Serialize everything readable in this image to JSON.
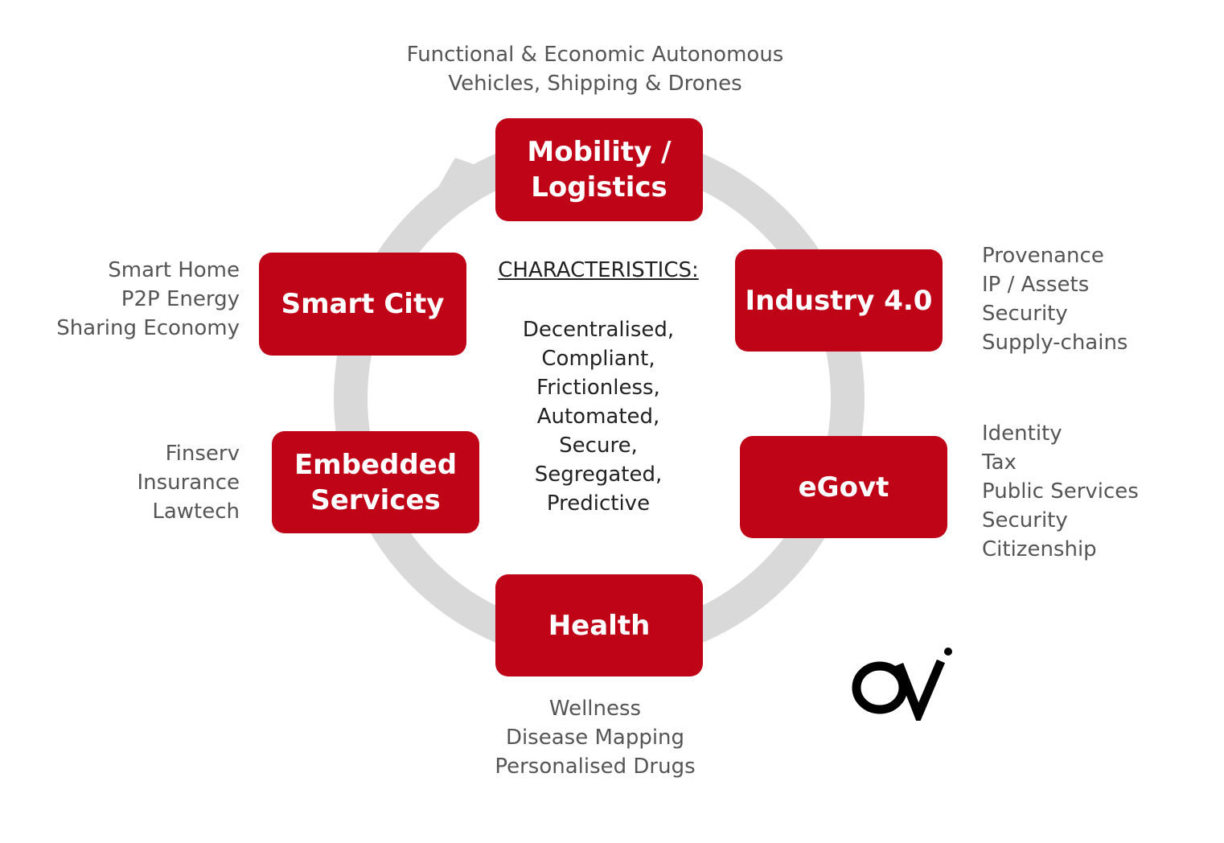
{
  "nodes": {
    "mobility": {
      "line1": "Mobility /",
      "line2": "Logistics"
    },
    "industry": {
      "label": "Industry 4.0"
    },
    "egovt": {
      "label": "eGovt"
    },
    "health": {
      "label": "Health"
    },
    "embedded": {
      "line1": "Embedded",
      "line2": "Services"
    },
    "smartcity": {
      "label": "Smart City"
    }
  },
  "descriptions": {
    "mobility": [
      "Functional & Economic Autonomous",
      "Vehicles, Shipping & Drones"
    ],
    "industry": [
      "Provenance",
      "IP / Assets",
      "Security",
      "Supply-chains"
    ],
    "egovt": [
      "Identity",
      "Tax",
      "Public Services",
      "Security",
      "Citizenship"
    ],
    "health": [
      "Wellness",
      "Disease Mapping",
      "Personalised Drugs"
    ],
    "embedded": [
      "Finserv",
      "Insurance",
      "Lawtech"
    ],
    "smartcity": [
      "Smart Home",
      "P2P Energy",
      "Sharing Economy"
    ]
  },
  "characteristics": {
    "title": "CHARACTERISTICS:",
    "items": [
      "Decentralised,",
      "Compliant,",
      "Frictionless,",
      "Automated,",
      "Secure,",
      "Segregated,",
      "Predictive"
    ]
  },
  "logo": {
    "text": "OVi",
    "icon": "ovi-logo"
  },
  "colors": {
    "box": "#c00418",
    "ring": "#d9d9d9",
    "text": "#555555"
  }
}
